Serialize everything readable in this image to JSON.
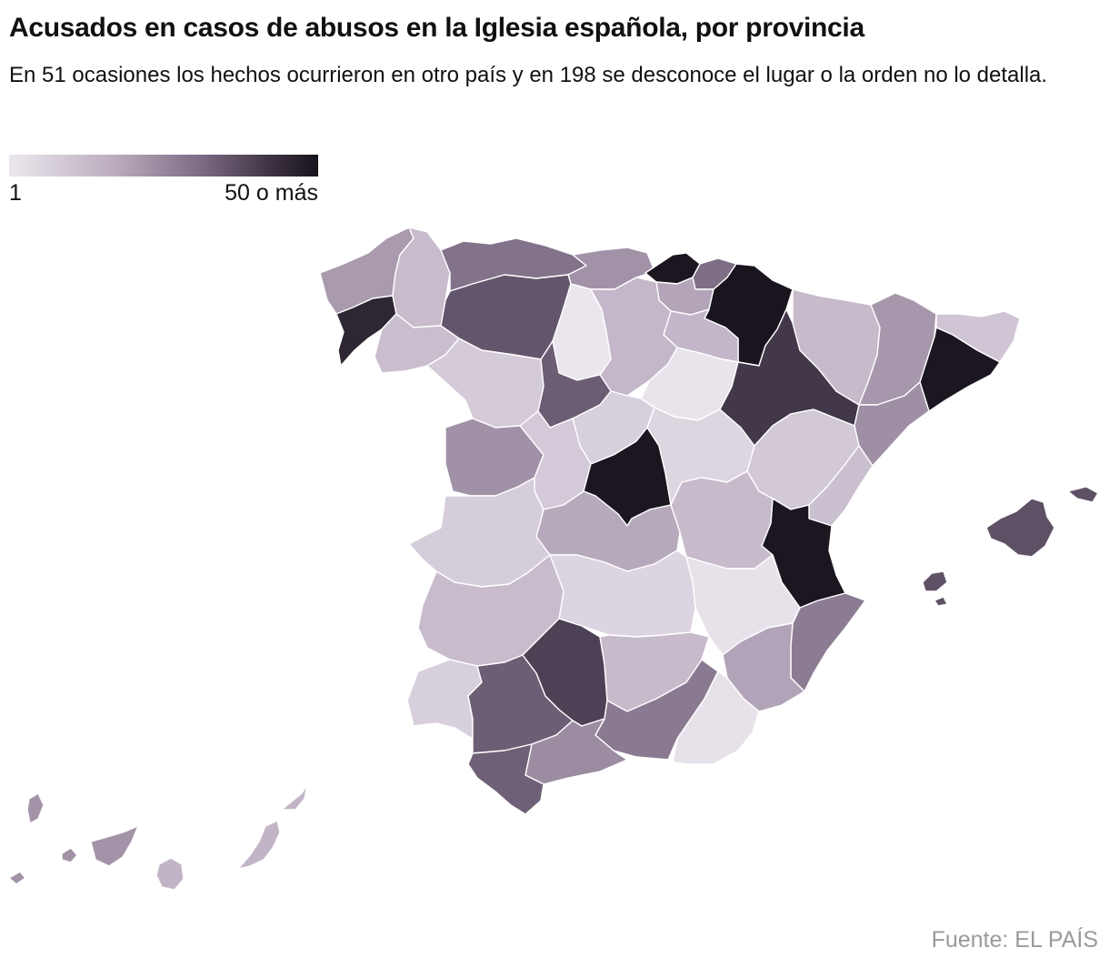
{
  "header": {
    "title": "Acusados en casos de abusos en la Iglesia española, por provincia",
    "subtitle": "En 51 ocasiones los hechos ocurrieron en otro país y en 198 se desconoce el lugar o la orden no lo detalla."
  },
  "legend": {
    "min_label": "1",
    "max_label": "50 o más",
    "colors": [
      "#ece8ee",
      "#b9aabc",
      "#7c6b84",
      "#3d3242",
      "#17121b"
    ]
  },
  "source": "Fuente: EL PAÍS",
  "map": {
    "regions": [
      {
        "id": "a-coruna",
        "fill": "#a99aae"
      },
      {
        "id": "pontevedra",
        "fill": "#2e2633"
      },
      {
        "id": "lugo",
        "fill": "#c7bbcc"
      },
      {
        "id": "ourense",
        "fill": "#c9bdce"
      },
      {
        "id": "asturias",
        "fill": "#82728a"
      },
      {
        "id": "cantabria",
        "fill": "#a192a8"
      },
      {
        "id": "vizcaya",
        "fill": "#1c1620"
      },
      {
        "id": "guipuzcoa",
        "fill": "#7e6e86"
      },
      {
        "id": "alava",
        "fill": "#b3a4b8"
      },
      {
        "id": "navarra",
        "fill": "#1a141e"
      },
      {
        "id": "la-rioja",
        "fill": "#c3b6c8"
      },
      {
        "id": "leon",
        "fill": "#63566c"
      },
      {
        "id": "palencia",
        "fill": "#ebe6ee"
      },
      {
        "id": "burgos",
        "fill": "#c3b7c9"
      },
      {
        "id": "soria",
        "fill": "#e9e4ec"
      },
      {
        "id": "zamora",
        "fill": "#d4cad8"
      },
      {
        "id": "valladolid",
        "fill": "#6b5d74"
      },
      {
        "id": "segovia",
        "fill": "#d8cfdc"
      },
      {
        "id": "salamanca",
        "fill": "#a191a7"
      },
      {
        "id": "avila",
        "fill": "#d3c9d8"
      },
      {
        "id": "madrid",
        "fill": "#1b161f"
      },
      {
        "id": "guadalajara",
        "fill": "#ddd5e0"
      },
      {
        "id": "zaragoza",
        "fill": "#423849"
      },
      {
        "id": "huesca",
        "fill": "#c6bacb"
      },
      {
        "id": "lleida",
        "fill": "#a797ac"
      },
      {
        "id": "girona",
        "fill": "#d0c5d5"
      },
      {
        "id": "barcelona",
        "fill": "#1c1620"
      },
      {
        "id": "tarragona",
        "fill": "#9e8fa5"
      },
      {
        "id": "teruel",
        "fill": "#d2c8d6"
      },
      {
        "id": "castellon",
        "fill": "#cabfcf"
      },
      {
        "id": "valencia",
        "fill": "#1b161f"
      },
      {
        "id": "cuenca",
        "fill": "#c6bacb"
      },
      {
        "id": "caceres",
        "fill": "#d6cddb"
      },
      {
        "id": "toledo",
        "fill": "#b7a9bc"
      },
      {
        "id": "badajoz",
        "fill": "#c7bbcc"
      },
      {
        "id": "ciudad-real",
        "fill": "#dcd4e0"
      },
      {
        "id": "albacete",
        "fill": "#e7e2ea"
      },
      {
        "id": "alicante",
        "fill": "#8c7c93"
      },
      {
        "id": "murcia",
        "fill": "#b2a4b8"
      },
      {
        "id": "huelva",
        "fill": "#d8cfdc"
      },
      {
        "id": "sevilla",
        "fill": "#6c5e74"
      },
      {
        "id": "cordoba",
        "fill": "#4d4155"
      },
      {
        "id": "jaen",
        "fill": "#c6bacb"
      },
      {
        "id": "granada",
        "fill": "#8a7a91"
      },
      {
        "id": "almeria",
        "fill": "#e7e2ea"
      },
      {
        "id": "malaga",
        "fill": "#9b8ca2"
      },
      {
        "id": "cadiz",
        "fill": "#6e6076"
      },
      {
        "id": "mallorca",
        "fill": "#5e5166"
      },
      {
        "id": "menorca",
        "fill": "#5e5166"
      },
      {
        "id": "ibiza",
        "fill": "#5e5166"
      },
      {
        "id": "formentera",
        "fill": "#5e5166"
      },
      {
        "id": "la-palma",
        "fill": "#a393a9"
      },
      {
        "id": "el-hierro",
        "fill": "#a393a9"
      },
      {
        "id": "la-gomera",
        "fill": "#a393a9"
      },
      {
        "id": "tenerife",
        "fill": "#a393a9"
      },
      {
        "id": "gran-canaria",
        "fill": "#c1b4c6"
      },
      {
        "id": "fuerteventura",
        "fill": "#c1b4c6"
      },
      {
        "id": "lanzarote",
        "fill": "#c1b4c6"
      }
    ]
  }
}
